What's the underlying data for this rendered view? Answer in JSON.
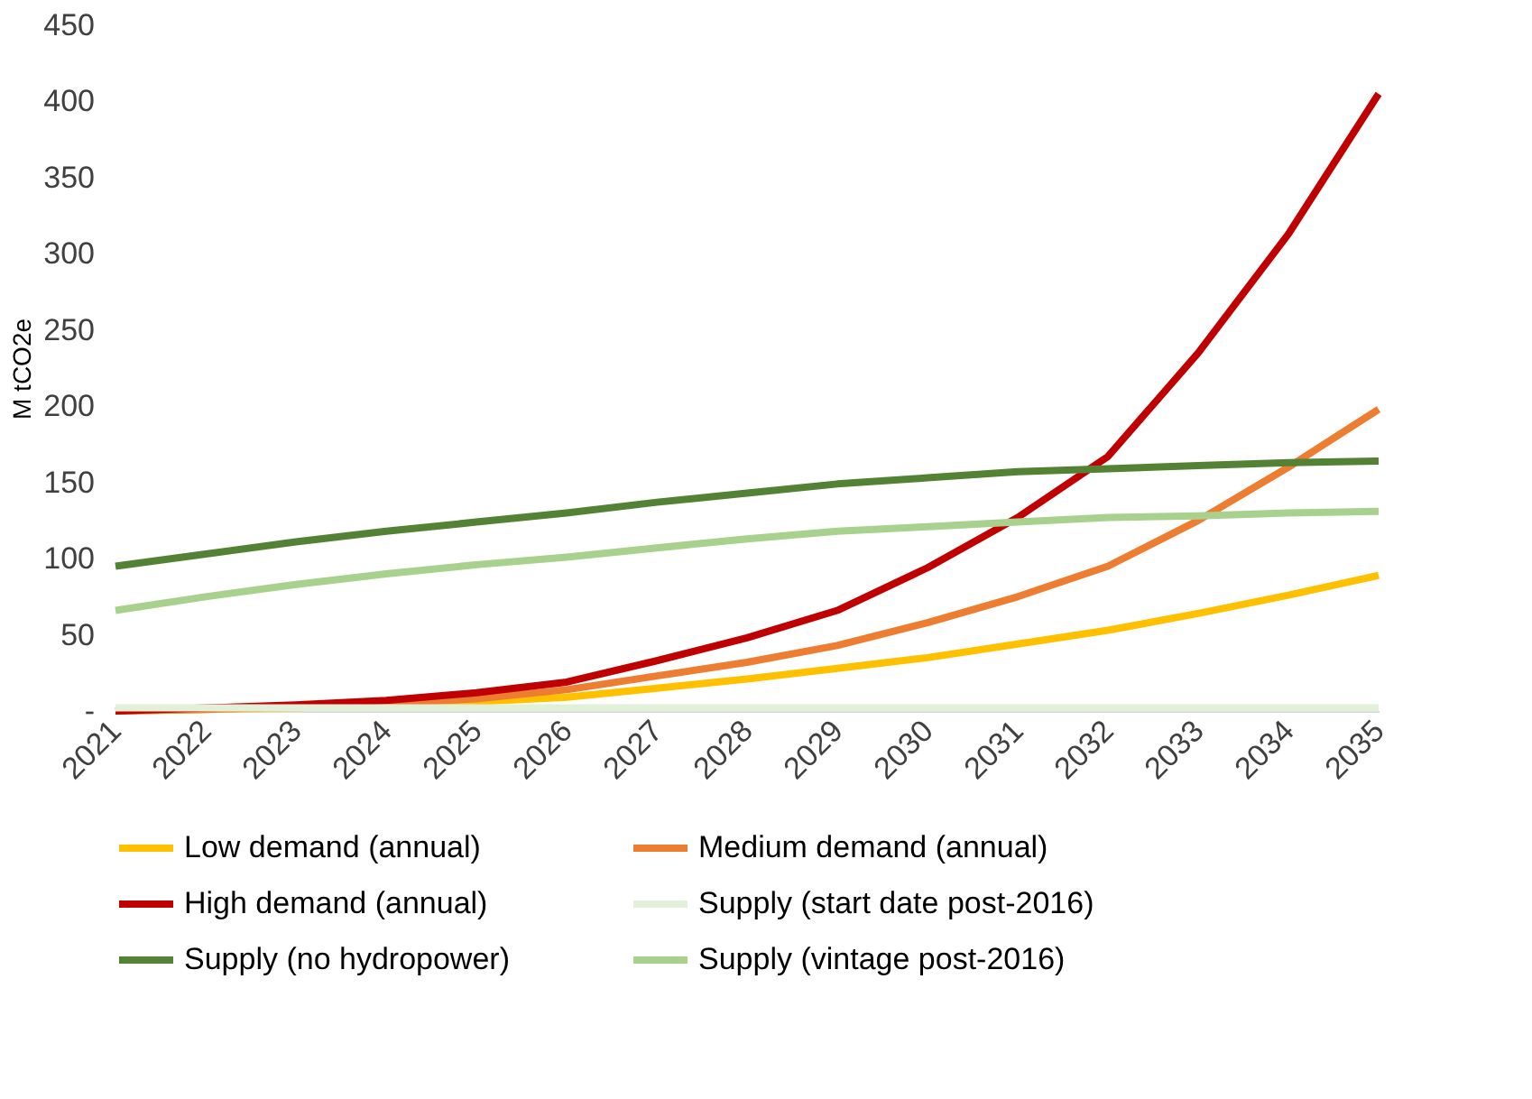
{
  "chart_data": {
    "type": "line",
    "ylabel": "M tCO2e",
    "categories": [
      "2021",
      "2022",
      "2023",
      "2024",
      "2025",
      "2026",
      "2027",
      "2028",
      "2029",
      "2030",
      "2031",
      "2032",
      "2033",
      "2034",
      "2035"
    ],
    "series": [
      {
        "name": "Low demand (annual)",
        "color": "#ffc000",
        "values": [
          0,
          1,
          2,
          4,
          6,
          9,
          15,
          21,
          28,
          35,
          44,
          53,
          64,
          76,
          89
        ]
      },
      {
        "name": "Medium demand (annual)",
        "color": "#ed7d31",
        "values": [
          0,
          1,
          3,
          5,
          8,
          14,
          23,
          32,
          43,
          58,
          75,
          95,
          125,
          160,
          198
        ]
      },
      {
        "name": "High demand (annual)",
        "color": "#c00000",
        "values": [
          0,
          2,
          4,
          7,
          12,
          19,
          33,
          48,
          66,
          94,
          127,
          167,
          235,
          313,
          405
        ]
      },
      {
        "name": "Supply (start date post-2016)",
        "color": "#e2efd9",
        "values": [
          2,
          2,
          2,
          2,
          2,
          2,
          2,
          2,
          2,
          2,
          2,
          2,
          2,
          2,
          2
        ]
      },
      {
        "name": "Supply (no hydropower)",
        "color": "#548235",
        "values": [
          95,
          103,
          111,
          118,
          124,
          130,
          137,
          143,
          149,
          153,
          157,
          159,
          161,
          163,
          164
        ]
      },
      {
        "name": "Supply (vintage post-2016)",
        "color": "#a9d18e",
        "values": [
          66,
          75,
          83,
          90,
          96,
          101,
          107,
          113,
          118,
          121,
          124,
          127,
          128,
          130,
          131
        ]
      }
    ],
    "ylim": [
      0,
      450
    ],
    "yticks": [
      {
        "value": 0,
        "label": "-"
      },
      50,
      100,
      150,
      200,
      250,
      300,
      350,
      400,
      450
    ],
    "legend": "bottom",
    "grid": false
  }
}
